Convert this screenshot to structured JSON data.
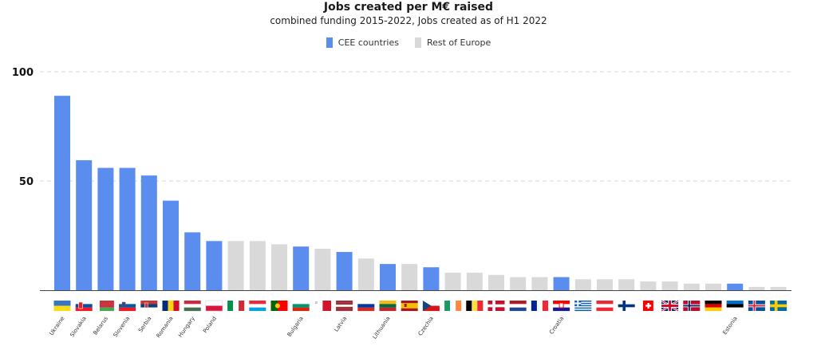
{
  "chart_data": {
    "type": "bar",
    "title": "Jobs created per M€ raised",
    "subtitle": "combined funding 2015-2022, Jobs created as of H1 2022",
    "legend": [
      {
        "name": "CEE countries",
        "color": "#5B8DEF"
      },
      {
        "name": "Rest of Europe",
        "color": "#D9D9D9"
      }
    ],
    "legend_position": "top-center",
    "grid": true,
    "ylim": [
      0,
      100
    ],
    "yticks": [
      50,
      100
    ],
    "xlabel": "",
    "ylabel": "",
    "categories": [
      {
        "flag": "ua",
        "label": "Ukraine",
        "value": 89,
        "group": "cee"
      },
      {
        "flag": "sk",
        "label": "Slovakia",
        "value": 59.5,
        "group": "cee"
      },
      {
        "flag": "by",
        "label": "Belarus",
        "value": 56,
        "group": "cee"
      },
      {
        "flag": "si",
        "label": "Slovenia",
        "value": 56,
        "group": "cee"
      },
      {
        "flag": "rs",
        "label": "Serbia",
        "value": 52.5,
        "group": "cee"
      },
      {
        "flag": "ro",
        "label": "Romania",
        "value": 41,
        "group": "cee"
      },
      {
        "flag": "hu",
        "label": "Hungary",
        "value": 26.5,
        "group": "cee"
      },
      {
        "flag": "pl",
        "label": "Poland",
        "value": 22.5,
        "group": "cee"
      },
      {
        "flag": "it",
        "label": "",
        "value": 22.5,
        "group": "rest"
      },
      {
        "flag": "lu",
        "label": "",
        "value": 22.5,
        "group": "rest"
      },
      {
        "flag": "pt",
        "label": "",
        "value": 21,
        "group": "rest"
      },
      {
        "flag": "bg",
        "label": "Bulgaria",
        "value": 20,
        "group": "cee"
      },
      {
        "flag": "mt",
        "label": "",
        "value": 19,
        "group": "rest"
      },
      {
        "flag": "lv",
        "label": "Latvia",
        "value": 17.5,
        "group": "cee"
      },
      {
        "flag": "ru",
        "label": "",
        "value": 14.5,
        "group": "rest"
      },
      {
        "flag": "lt",
        "label": "Lithuania",
        "value": 12,
        "group": "cee"
      },
      {
        "flag": "es",
        "label": "",
        "value": 12,
        "group": "rest"
      },
      {
        "flag": "cz",
        "label": "Czechia",
        "value": 10.5,
        "group": "cee"
      },
      {
        "flag": "ie",
        "label": "",
        "value": 8,
        "group": "rest"
      },
      {
        "flag": "be",
        "label": "",
        "value": 8,
        "group": "rest"
      },
      {
        "flag": "dk",
        "label": "",
        "value": 7,
        "group": "rest"
      },
      {
        "flag": "nl",
        "label": "",
        "value": 6,
        "group": "rest"
      },
      {
        "flag": "fr",
        "label": "",
        "value": 6,
        "group": "rest"
      },
      {
        "flag": "hr",
        "label": "Croatia",
        "value": 6,
        "group": "cee"
      },
      {
        "flag": "gr",
        "label": "",
        "value": 5,
        "group": "rest"
      },
      {
        "flag": "at",
        "label": "",
        "value": 5,
        "group": "rest"
      },
      {
        "flag": "fi",
        "label": "",
        "value": 5,
        "group": "rest"
      },
      {
        "flag": "ch",
        "label": "",
        "value": 4,
        "group": "rest"
      },
      {
        "flag": "gb",
        "label": "",
        "value": 4,
        "group": "rest"
      },
      {
        "flag": "no",
        "label": "",
        "value": 3,
        "group": "rest"
      },
      {
        "flag": "de",
        "label": "",
        "value": 3,
        "group": "rest"
      },
      {
        "flag": "ee",
        "label": "Estonia",
        "value": 3,
        "group": "cee"
      },
      {
        "flag": "is",
        "label": "",
        "value": 1.5,
        "group": "rest"
      },
      {
        "flag": "se",
        "label": "",
        "value": 1.5,
        "group": "rest"
      }
    ]
  }
}
